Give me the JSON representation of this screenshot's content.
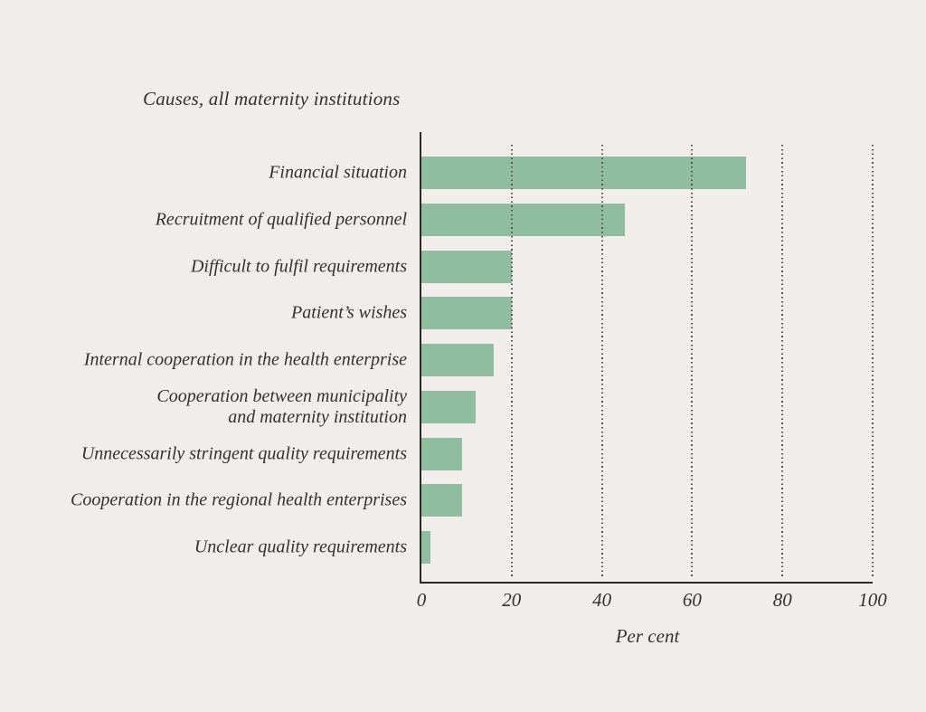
{
  "figure": {
    "colors": {
      "background": "#f0edeb",
      "bar": "#90bc9f",
      "axis": "#2c2926",
      "text": "#36312d",
      "gridline": "#55524e"
    }
  },
  "chart_data": {
    "type": "bar",
    "orientation": "horizontal",
    "title": "Causes, all maternity institutions",
    "xlabel": "Per cent",
    "xlim": [
      0,
      100
    ],
    "xticks": [
      0,
      20,
      40,
      60,
      80,
      100
    ],
    "grid": "vertical-dotted",
    "legend": "none",
    "categories": [
      "Financial situation",
      "Recruitment of qualified personnel",
      "Difficult to fulfil requirements",
      "Patient’s wishes",
      "Internal cooperation in the health enterprise",
      "Cooperation between municipality\nand maternity institution",
      "Unnecessarily stringent quality requirements",
      "Cooperation in the regional health enterprises",
      "Unclear quality requirements"
    ],
    "values": [
      72,
      45,
      20,
      20,
      16,
      12,
      9,
      9,
      2
    ]
  }
}
